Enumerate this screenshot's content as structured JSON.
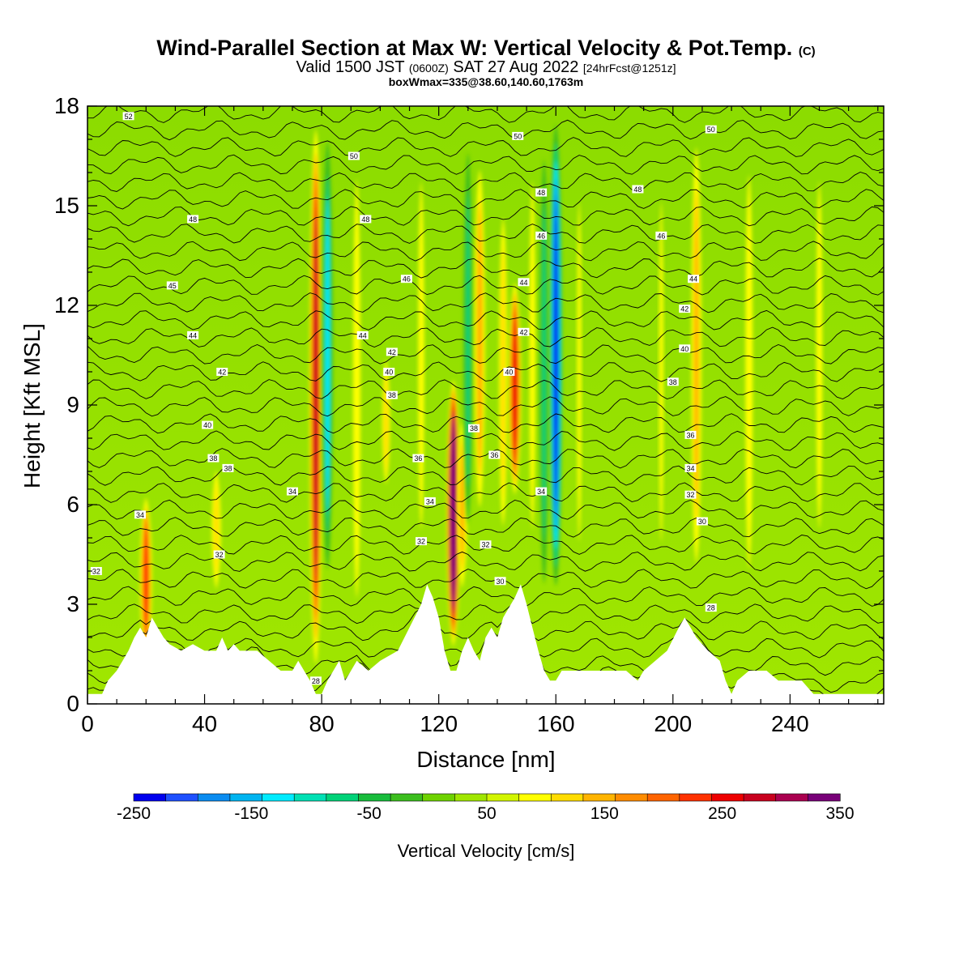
{
  "header": {
    "title_main": "Wind-Parallel Section at Max W: Vertical Velocity & Pot.Temp.",
    "title_mark": "(C)",
    "valid_a": "Valid 1500 JST",
    "valid_b": "(0600Z)",
    "valid_c": "SAT 27 Aug 2022",
    "valid_d": "[24hrFcst@1251z]",
    "box_info": "boxWmax=335@38.60,140.60,1763m"
  },
  "chart_data": {
    "type": "heatmap",
    "xlabel": "Distance [nm]",
    "ylabel": "Height [Kft MSL]",
    "xlim": [
      0,
      272
    ],
    "ylim": [
      0,
      18
    ],
    "x_ticks": [
      0,
      40,
      80,
      120,
      160,
      200,
      240
    ],
    "y_ticks": [
      0,
      3,
      6,
      9,
      12,
      15,
      18
    ],
    "colorbar": {
      "title": "Vertical Velocity [cm/s]",
      "range": [
        -250,
        350
      ],
      "step": 25,
      "tick_labels": [
        "-250",
        "-150",
        "-50",
        "50",
        "150",
        "250",
        "350"
      ],
      "colors": [
        "#0000ee",
        "#1e50ff",
        "#0a8cf0",
        "#00b4f0",
        "#00ebff",
        "#00e0b4",
        "#00d278",
        "#18bc3c",
        "#3cbe1e",
        "#6ed200",
        "#a0e600",
        "#d2f500",
        "#ffff00",
        "#ffdc00",
        "#ffb400",
        "#ff8c00",
        "#ff6400",
        "#ff3200",
        "#ee0000",
        "#c8001e",
        "#aa0050",
        "#780078"
      ]
    },
    "terrain_kft": [
      [
        0,
        0.3
      ],
      [
        5,
        0.3
      ],
      [
        7,
        0.7
      ],
      [
        10,
        1.0
      ],
      [
        12,
        1.3
      ],
      [
        14,
        1.6
      ],
      [
        16,
        2.0
      ],
      [
        18,
        2.3
      ],
      [
        20,
        2.0
      ],
      [
        22,
        2.6
      ],
      [
        24,
        2.3
      ],
      [
        26,
        2.0
      ],
      [
        28,
        1.8
      ],
      [
        32,
        1.6
      ],
      [
        36,
        1.8
      ],
      [
        40,
        1.6
      ],
      [
        44,
        1.6
      ],
      [
        46,
        2.0
      ],
      [
        48,
        1.6
      ],
      [
        50,
        1.8
      ],
      [
        52,
        1.6
      ],
      [
        58,
        1.6
      ],
      [
        62,
        1.3
      ],
      [
        66,
        1.0
      ],
      [
        70,
        1.0
      ],
      [
        72,
        1.3
      ],
      [
        74,
        1.0
      ],
      [
        76,
        0.7
      ],
      [
        78,
        0.3
      ],
      [
        80,
        0.3
      ],
      [
        82,
        0.7
      ],
      [
        84,
        1.0
      ],
      [
        86,
        1.3
      ],
      [
        88,
        0.7
      ],
      [
        90,
        1.0
      ],
      [
        92,
        1.3
      ],
      [
        96,
        1.0
      ],
      [
        100,
        1.3
      ],
      [
        106,
        1.6
      ],
      [
        110,
        2.3
      ],
      [
        114,
        3.0
      ],
      [
        116,
        3.6
      ],
      [
        118,
        3.2
      ],
      [
        120,
        2.6
      ],
      [
        122,
        1.6
      ],
      [
        124,
        1.0
      ],
      [
        126,
        1.0
      ],
      [
        128,
        1.6
      ],
      [
        130,
        2.0
      ],
      [
        132,
        1.6
      ],
      [
        134,
        1.3
      ],
      [
        136,
        2.0
      ],
      [
        138,
        2.3
      ],
      [
        140,
        2.0
      ],
      [
        142,
        2.6
      ],
      [
        146,
        3.2
      ],
      [
        148,
        3.6
      ],
      [
        150,
        3.0
      ],
      [
        152,
        2.3
      ],
      [
        154,
        1.6
      ],
      [
        156,
        1.0
      ],
      [
        158,
        0.7
      ],
      [
        160,
        0.7
      ],
      [
        162,
        1.0
      ],
      [
        166,
        1.0
      ],
      [
        170,
        1.0
      ],
      [
        174,
        1.0
      ],
      [
        180,
        1.0
      ],
      [
        184,
        1.0
      ],
      [
        188,
        0.7
      ],
      [
        190,
        1.0
      ],
      [
        194,
        1.3
      ],
      [
        198,
        1.6
      ],
      [
        202,
        2.3
      ],
      [
        204,
        2.6
      ],
      [
        206,
        2.3
      ],
      [
        208,
        2.0
      ],
      [
        212,
        1.6
      ],
      [
        216,
        1.3
      ],
      [
        218,
        0.7
      ],
      [
        220,
        0.3
      ],
      [
        222,
        0.7
      ],
      [
        226,
        1.0
      ],
      [
        232,
        1.0
      ],
      [
        236,
        0.7
      ],
      [
        240,
        0.7
      ],
      [
        244,
        0.7
      ],
      [
        248,
        0.3
      ],
      [
        252,
        0.3
      ],
      [
        260,
        0.3
      ],
      [
        272,
        0.3
      ]
    ],
    "w_features_cm_s": [
      {
        "x": 20,
        "z": [
          1,
          6.5
        ],
        "w": 180
      },
      {
        "x": 44,
        "z": [
          3,
          7.5
        ],
        "w": 90
      },
      {
        "x": 78,
        "z": [
          0.5,
          18
        ],
        "w": 230
      },
      {
        "x": 82,
        "z": [
          3,
          18
        ],
        "w": -130
      },
      {
        "x": 92,
        "z": [
          1,
          18
        ],
        "w": 70
      },
      {
        "x": 102,
        "z": [
          6,
          11
        ],
        "w": 75
      },
      {
        "x": 114,
        "z": [
          3,
          18
        ],
        "w": 60
      },
      {
        "x": 125,
        "z": [
          1.5,
          10
        ],
        "w": 335
      },
      {
        "x": 128,
        "z": [
          3,
          9
        ],
        "w": 110
      },
      {
        "x": 130,
        "z": [
          4,
          18
        ],
        "w": -90
      },
      {
        "x": 134,
        "z": [
          5,
          17
        ],
        "w": 120
      },
      {
        "x": 142,
        "z": [
          4,
          16
        ],
        "w": 80
      },
      {
        "x": 146,
        "z": [
          6,
          13
        ],
        "w": 215
      },
      {
        "x": 152,
        "z": [
          3,
          18
        ],
        "w": 60
      },
      {
        "x": 156,
        "z": [
          2,
          18
        ],
        "w": -90
      },
      {
        "x": 160,
        "z": [
          3,
          18
        ],
        "w": -250
      },
      {
        "x": 168,
        "z": [
          2,
          18
        ],
        "w": 50
      },
      {
        "x": 196,
        "z": [
          2,
          18
        ],
        "w": 50
      },
      {
        "x": 208,
        "z": [
          3,
          18
        ],
        "w": 110
      },
      {
        "x": 226,
        "z": [
          2,
          18
        ],
        "w": 70
      },
      {
        "x": 250,
        "z": [
          3,
          18
        ],
        "w": 60
      }
    ],
    "isentrope_labels": [
      {
        "x": 14,
        "z": 17.7,
        "text": "52"
      },
      {
        "x": 36,
        "z": 14.6,
        "text": "48"
      },
      {
        "x": 29,
        "z": 12.6,
        "text": "45"
      },
      {
        "x": 36,
        "z": 11.1,
        "text": "44"
      },
      {
        "x": 46,
        "z": 10.0,
        "text": "42"
      },
      {
        "x": 41,
        "z": 8.4,
        "text": "40"
      },
      {
        "x": 43,
        "z": 7.4,
        "text": "38"
      },
      {
        "x": 48,
        "z": 7.1,
        "text": "38"
      },
      {
        "x": 70,
        "z": 6.4,
        "text": "34"
      },
      {
        "x": 18,
        "z": 5.7,
        "text": "34"
      },
      {
        "x": 45,
        "z": 4.5,
        "text": "32"
      },
      {
        "x": 3,
        "z": 4.0,
        "text": "32"
      },
      {
        "x": 91,
        "z": 16.5,
        "text": "50"
      },
      {
        "x": 95,
        "z": 14.6,
        "text": "48"
      },
      {
        "x": 109,
        "z": 12.8,
        "text": "46"
      },
      {
        "x": 94,
        "z": 11.1,
        "text": "44"
      },
      {
        "x": 104,
        "z": 10.6,
        "text": "42"
      },
      {
        "x": 103,
        "z": 10.0,
        "text": "40"
      },
      {
        "x": 104,
        "z": 9.3,
        "text": "38"
      },
      {
        "x": 113,
        "z": 7.4,
        "text": "36"
      },
      {
        "x": 117,
        "z": 6.1,
        "text": "34"
      },
      {
        "x": 114,
        "z": 4.9,
        "text": "32"
      },
      {
        "x": 147,
        "z": 17.1,
        "text": "50"
      },
      {
        "x": 155,
        "z": 15.4,
        "text": "48"
      },
      {
        "x": 155,
        "z": 14.1,
        "text": "46"
      },
      {
        "x": 149,
        "z": 12.7,
        "text": "44"
      },
      {
        "x": 149,
        "z": 11.2,
        "text": "42"
      },
      {
        "x": 144,
        "z": 10.0,
        "text": "40"
      },
      {
        "x": 132,
        "z": 8.3,
        "text": "38"
      },
      {
        "x": 139,
        "z": 7.5,
        "text": "36"
      },
      {
        "x": 136,
        "z": 4.8,
        "text": "32"
      },
      {
        "x": 141,
        "z": 3.7,
        "text": "30"
      },
      {
        "x": 155,
        "z": 6.4,
        "text": "34"
      },
      {
        "x": 213,
        "z": 17.3,
        "text": "50"
      },
      {
        "x": 188,
        "z": 15.5,
        "text": "48"
      },
      {
        "x": 196,
        "z": 14.1,
        "text": "46"
      },
      {
        "x": 207,
        "z": 12.8,
        "text": "44"
      },
      {
        "x": 204,
        "z": 11.9,
        "text": "42"
      },
      {
        "x": 204,
        "z": 10.7,
        "text": "40"
      },
      {
        "x": 200,
        "z": 9.7,
        "text": "38"
      },
      {
        "x": 206,
        "z": 8.1,
        "text": "36"
      },
      {
        "x": 206,
        "z": 7.1,
        "text": "34"
      },
      {
        "x": 206,
        "z": 6.3,
        "text": "32"
      },
      {
        "x": 210,
        "z": 5.5,
        "text": "30"
      },
      {
        "x": 213,
        "z": 2.9,
        "text": "28"
      },
      {
        "x": 78,
        "z": 0.7,
        "text": "28"
      }
    ]
  }
}
